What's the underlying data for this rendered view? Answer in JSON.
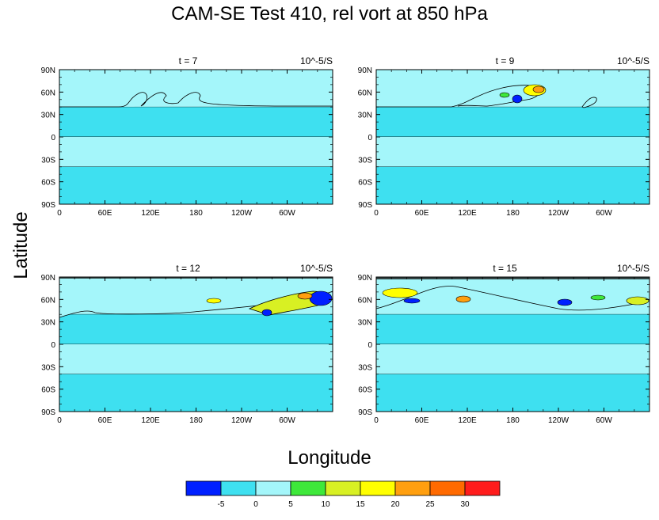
{
  "title": "CAM-SE Test 410, rel vort at 850 hPa",
  "xlabel": "Longitude",
  "ylabel": "Latitude",
  "colors": {
    "background": "#ffffff",
    "levels": [
      "#0020ff",
      "#3ee0f0",
      "#a4f6fa",
      "#3ee83a",
      "#d8f023",
      "#ffff00",
      "#ff9f0f",
      "#ff6a00",
      "#ff1c1c"
    ]
  },
  "colorbar": {
    "labels": [
      "-5",
      "0",
      "5",
      "10",
      "15",
      "20",
      "25",
      "30"
    ]
  },
  "chart_data": [
    {
      "type": "heatmap",
      "panel": "t = 7",
      "subtitle_left": "t = 7",
      "subtitle_right": "10^-5/S",
      "x_ticks": [
        "0",
        "60E",
        "120E",
        "180",
        "120W",
        "60W"
      ],
      "y_ticks": [
        "90N",
        "60N",
        "30N",
        "0",
        "30S",
        "60S",
        "90S"
      ],
      "regions": [
        {
          "lat": [
            40,
            90
          ],
          "value_range": [
            0,
            5
          ]
        },
        {
          "lat": [
            0,
            40
          ],
          "value_range": [
            -5,
            0
          ]
        },
        {
          "lat": [
            -40,
            0
          ],
          "value_range": [
            0,
            5
          ]
        },
        {
          "lat": [
            -90,
            -40
          ],
          "value_range": [
            -5,
            0
          ]
        }
      ]
    },
    {
      "type": "heatmap",
      "panel": "t = 9",
      "subtitle_left": "t = 9",
      "subtitle_right": "10^-5/S",
      "x_ticks": [
        "0",
        "60E",
        "120E",
        "180",
        "120W",
        "60W"
      ],
      "y_ticks": [
        "90N",
        "60N",
        "30N",
        "0",
        "30S",
        "60S",
        "90S"
      ],
      "regions": [
        {
          "lat": [
            40,
            90
          ],
          "value_range": [
            0,
            5
          ]
        },
        {
          "lat": [
            0,
            40
          ],
          "value_range": [
            -5,
            0
          ]
        },
        {
          "lat": [
            -40,
            0
          ],
          "value_range": [
            0,
            5
          ]
        },
        {
          "lat": [
            -90,
            -40
          ],
          "value_range": [
            -5,
            0
          ]
        }
      ]
    },
    {
      "type": "heatmap",
      "panel": "t = 12",
      "subtitle_left": "t = 12",
      "subtitle_right": "10^-5/S",
      "x_ticks": [
        "0",
        "60E",
        "120E",
        "180",
        "120W",
        "60W"
      ],
      "y_ticks": [
        "90N",
        "60N",
        "30N",
        "0",
        "30S",
        "60S",
        "90S"
      ],
      "regions": [
        {
          "lat": [
            40,
            90
          ],
          "value_range": [
            0,
            5
          ]
        },
        {
          "lat": [
            0,
            40
          ],
          "value_range": [
            -5,
            0
          ]
        },
        {
          "lat": [
            -40,
            0
          ],
          "value_range": [
            0,
            5
          ]
        },
        {
          "lat": [
            -90,
            -40
          ],
          "value_range": [
            -5,
            0
          ]
        }
      ]
    },
    {
      "type": "heatmap",
      "panel": "t = 15",
      "subtitle_left": "t = 15",
      "subtitle_right": "10^-5/S",
      "x_ticks": [
        "0",
        "60E",
        "120E",
        "180",
        "120W",
        "60W"
      ],
      "y_ticks": [
        "90N",
        "60N",
        "30N",
        "0",
        "30S",
        "60S",
        "90S"
      ],
      "regions": [
        {
          "lat": [
            40,
            90
          ],
          "value_range": [
            0,
            5
          ]
        },
        {
          "lat": [
            0,
            40
          ],
          "value_range": [
            -5,
            0
          ]
        },
        {
          "lat": [
            -40,
            0
          ],
          "value_range": [
            0,
            5
          ]
        },
        {
          "lat": [
            -90,
            -40
          ],
          "value_range": [
            -5,
            0
          ]
        }
      ]
    }
  ]
}
